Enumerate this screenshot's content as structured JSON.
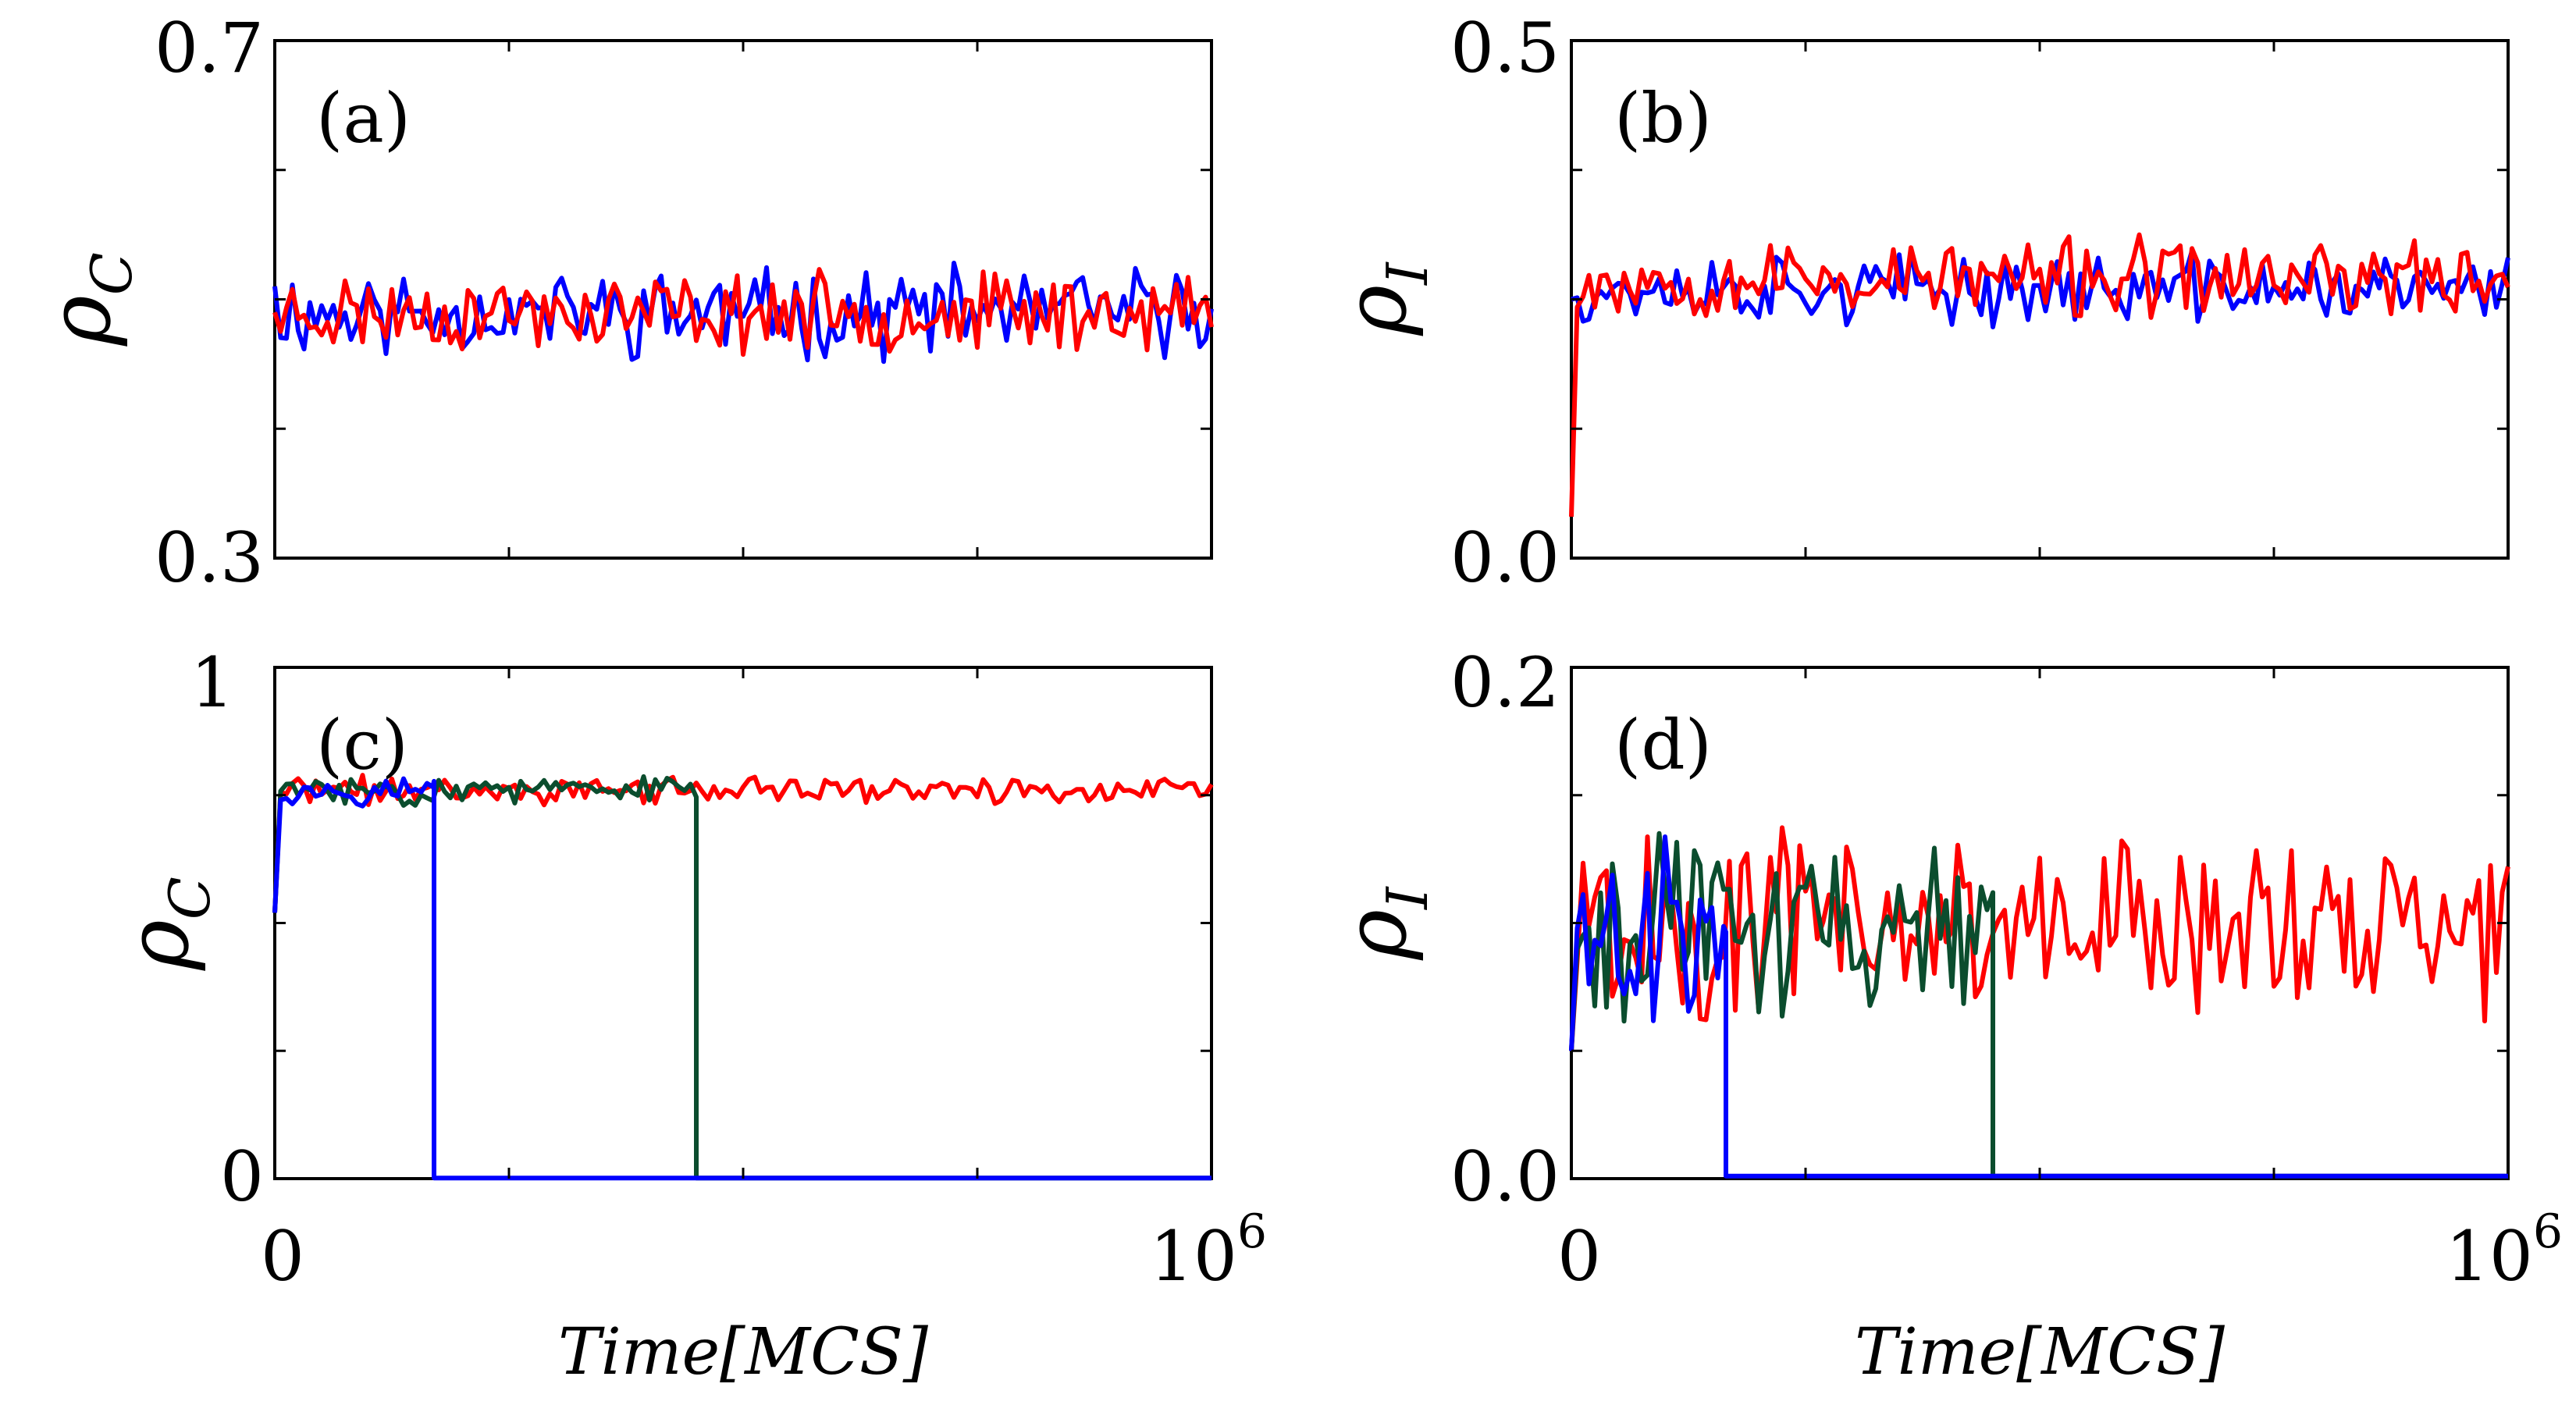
{
  "figure": {
    "x_axis_label": "Time[MCS]",
    "colors": {
      "blue": "#0000ff",
      "red": "#ff0000",
      "green": "#0b4d2e",
      "axis": "#000000"
    }
  },
  "chart_data": [
    {
      "type": "line",
      "panel_label": "(a)",
      "ylabel": "ρ",
      "ylabel_sub": "C",
      "xlim": [
        0,
        1000000
      ],
      "ylim": [
        0.3,
        0.7
      ],
      "yticks": [
        "0.7",
        "0.3"
      ],
      "xticks": [],
      "series": [
        {
          "name": "blue",
          "color": "#0000ff",
          "kind": "noise",
          "start": 0.51,
          "base": 0.49,
          "amp": 0.025,
          "seed": 11,
          "n": 160
        },
        {
          "name": "red",
          "color": "#ff0000",
          "kind": "noise",
          "start": 0.49,
          "base": 0.49,
          "amp": 0.022,
          "seed": 23,
          "n": 160
        }
      ]
    },
    {
      "type": "line",
      "panel_label": "(b)",
      "ylabel": "ρ",
      "ylabel_sub": "I",
      "xlim": [
        0,
        1000000
      ],
      "ylim": [
        0.0,
        0.5
      ],
      "yticks": [
        "0.5",
        "0.0"
      ],
      "xticks": [],
      "series": [
        {
          "name": "blue",
          "color": "#0000ff",
          "kind": "noise",
          "start": 0.25,
          "base": 0.26,
          "amp": 0.025,
          "seed": 37,
          "n": 160
        },
        {
          "name": "red",
          "color": "#ff0000",
          "kind": "noise",
          "start": 0.04,
          "base": 0.27,
          "amp": 0.028,
          "seed": 53,
          "n": 160
        }
      ]
    },
    {
      "type": "line",
      "panel_label": "(c)",
      "ylabel": "ρ",
      "ylabel_sub": "C",
      "xlim": [
        0,
        1000000
      ],
      "ylim": [
        0,
        1
      ],
      "yticks": [
        "1",
        "0"
      ],
      "xticks": [
        "0",
        "10",
        "6"
      ],
      "series": [
        {
          "name": "red",
          "color": "#ff0000",
          "kind": "noise",
          "start": 0.52,
          "base": 0.76,
          "amp": 0.02,
          "seed": 71,
          "n": 160
        },
        {
          "name": "green",
          "color": "#0b4d2e",
          "kind": "noise",
          "start": 0.52,
          "base": 0.76,
          "amp": 0.02,
          "seed": 83,
          "n": 160,
          "drop_at": 450000
        },
        {
          "name": "blue",
          "color": "#0000ff",
          "kind": "noise",
          "start": 0.52,
          "base": 0.76,
          "amp": 0.02,
          "seed": 97,
          "n": 160,
          "drop_at": 170000
        }
      ]
    },
    {
      "type": "line",
      "panel_label": "(d)",
      "ylabel": "ρ",
      "ylabel_sub": "I",
      "xlim": [
        0,
        1000000
      ],
      "ylim": [
        0.0,
        0.2
      ],
      "yticks": [
        "0.2",
        "0.0"
      ],
      "xticks": [
        "0",
        "10",
        "6"
      ],
      "series": [
        {
          "name": "red",
          "color": "#ff0000",
          "kind": "noise",
          "start": 0.05,
          "base": 0.1,
          "amp": 0.028,
          "seed": 101,
          "n": 160
        },
        {
          "name": "green",
          "color": "#0b4d2e",
          "kind": "noise",
          "start": 0.05,
          "base": 0.1,
          "amp": 0.025,
          "seed": 113,
          "n": 160,
          "drop_at": 450000
        },
        {
          "name": "blue",
          "color": "#0000ff",
          "kind": "noise",
          "start": 0.05,
          "base": 0.1,
          "amp": 0.028,
          "seed": 127,
          "n": 160,
          "drop_at": 165000
        }
      ]
    }
  ]
}
